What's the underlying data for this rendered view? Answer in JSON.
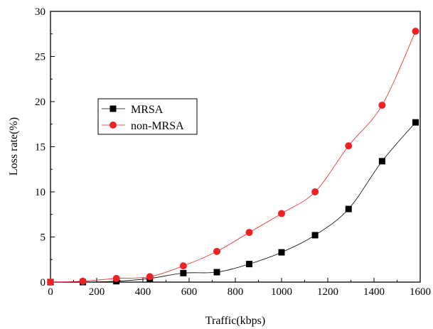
{
  "chart_data": {
    "type": "line",
    "title": "",
    "xlabel": "Traffic(kbps)",
    "ylabel": "Loss rate(%)",
    "xlim": [
      0,
      1600
    ],
    "ylim": [
      0,
      30
    ],
    "x_ticks": [
      0,
      200,
      400,
      600,
      800,
      1000,
      1200,
      1400,
      1600
    ],
    "y_ticks": [
      0,
      5,
      10,
      15,
      20,
      25,
      30
    ],
    "grid": false,
    "legend_position": "center-left",
    "series": [
      {
        "name": "MRSA",
        "color": "#000000",
        "marker": "square",
        "x": [
          0,
          140,
          285,
          430,
          575,
          720,
          860,
          1000,
          1145,
          1290,
          1435,
          1580
        ],
        "y": [
          0.0,
          0.0,
          0.1,
          0.4,
          1.0,
          1.1,
          2.0,
          3.3,
          5.2,
          8.1,
          13.4,
          17.7
        ]
      },
      {
        "name": "non-MRSA",
        "color": "#ee2222",
        "marker": "circle",
        "x": [
          0,
          140,
          285,
          430,
          575,
          720,
          860,
          1000,
          1145,
          1290,
          1435,
          1580
        ],
        "y": [
          0.0,
          0.1,
          0.4,
          0.6,
          1.8,
          3.4,
          5.5,
          7.6,
          10.0,
          15.1,
          19.6,
          27.8
        ]
      }
    ]
  }
}
